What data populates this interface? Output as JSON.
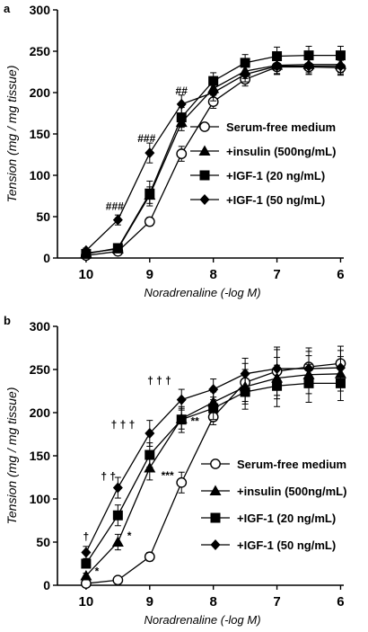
{
  "chart_data": [
    {
      "type": "line",
      "panel_label": "a",
      "xlabel": "Noradrenaline (-log M)",
      "ylabel": "Tension (mg / mg tissue)",
      "xlim": [
        10.45,
        5.95
      ],
      "ylim": [
        0,
        300
      ],
      "xticks": [
        10,
        9,
        8,
        7,
        6
      ],
      "yticks": [
        0,
        50,
        100,
        150,
        200,
        250,
        300
      ],
      "x": [
        10,
        9.5,
        9,
        8.5,
        8,
        7.5,
        7,
        6.5,
        6
      ],
      "series": [
        {
          "name": "Serum-free medium",
          "marker": "circle-open",
          "values": [
            3,
            8,
            44,
            126,
            189,
            216,
            231,
            231,
            230
          ],
          "err": [
            2,
            3,
            5,
            9,
            8,
            8,
            9,
            9,
            9
          ]
        },
        {
          "name": "+insulin (500ng/mL)",
          "marker": "triangle",
          "values": [
            6,
            11,
            76,
            164,
            205,
            226,
            233,
            234,
            234
          ],
          "err": [
            2,
            3,
            10,
            10,
            8,
            9,
            10,
            10,
            10
          ]
        },
        {
          "name": "+IGF-1 (20 ng/mL)",
          "marker": "square",
          "values": [
            5,
            12,
            78,
            170,
            214,
            236,
            244,
            245,
            245
          ],
          "err": [
            2,
            3,
            15,
            12,
            10,
            10,
            11,
            11,
            11
          ]
        },
        {
          "name": "+IGF-1 (50 ng/mL)",
          "marker": "diamond",
          "values": [
            9,
            46,
            127,
            186,
            200,
            222,
            232,
            232,
            232
          ],
          "err": [
            3,
            6,
            12,
            11,
            10,
            9,
            10,
            10,
            10
          ]
        }
      ],
      "annotations": [
        {
          "text": "###",
          "x": 9.55,
          "y": 58
        },
        {
          "text": "###",
          "x": 9.05,
          "y": 140
        },
        {
          "text": "##",
          "x": 8.5,
          "y": 198
        }
      ]
    },
    {
      "type": "line",
      "panel_label": "b",
      "xlabel": "Noradrenaline (-log M)",
      "ylabel": "Tension (mg / mg tissue)",
      "xlim": [
        10.45,
        5.95
      ],
      "ylim": [
        0,
        300
      ],
      "xticks": [
        10,
        9,
        8,
        7,
        6
      ],
      "yticks": [
        0,
        50,
        100,
        150,
        200,
        250,
        300
      ],
      "x": [
        10,
        9.5,
        9,
        8.5,
        8,
        7.5,
        7,
        6.5,
        6
      ],
      "series": [
        {
          "name": "Serum-free medium",
          "marker": "circle-open",
          "values": [
            2,
            6,
            33,
            119,
            195,
            235,
            248,
            253,
            257
          ],
          "err": [
            1,
            3,
            5,
            12,
            9,
            22,
            28,
            22,
            20
          ]
        },
        {
          "name": "+insulin (500ng/mL)",
          "marker": "triangle",
          "values": [
            11,
            50,
            136,
            193,
            212,
            230,
            240,
            244,
            245
          ],
          "err": [
            3,
            9,
            14,
            12,
            12,
            20,
            24,
            22,
            20
          ]
        },
        {
          "name": "+IGF-1 (20 ng/mL)",
          "marker": "square",
          "values": [
            25,
            81,
            151,
            192,
            205,
            224,
            231,
            234,
            234
          ],
          "err": [
            5,
            12,
            14,
            15,
            13,
            20,
            24,
            22,
            20
          ]
        },
        {
          "name": "+IGF-1 (50 ng/mL)",
          "marker": "diamond",
          "values": [
            38,
            113,
            176,
            215,
            227,
            245,
            251,
            251,
            252
          ],
          "err": [
            7,
            12,
            15,
            12,
            12,
            18,
            22,
            20,
            20
          ]
        }
      ],
      "annotations": [
        {
          "text": "*",
          "x": 9.83,
          "y": 12
        },
        {
          "text": "*",
          "x": 9.32,
          "y": 53
        },
        {
          "text": "***",
          "x": 8.72,
          "y": 123
        },
        {
          "text": "**",
          "x": 8.29,
          "y": 186
        },
        {
          "text": "†",
          "x": 10,
          "y": 52
        },
        {
          "text": "† †",
          "x": 9.65,
          "y": 122
        },
        {
          "text": "† † †",
          "x": 9.42,
          "y": 182
        },
        {
          "text": "† † †",
          "x": 8.85,
          "y": 233
        }
      ]
    }
  ]
}
